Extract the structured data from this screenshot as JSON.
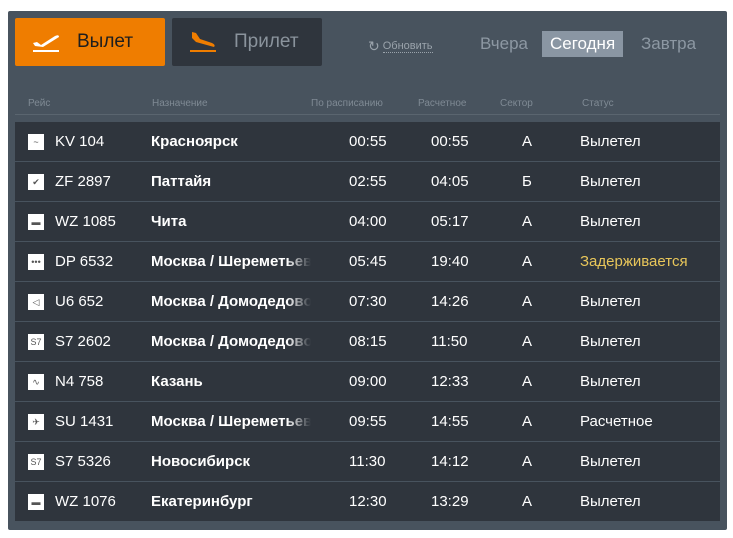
{
  "tabs": {
    "departure": "Вылет",
    "arrival": "Прилет"
  },
  "refresh": "Обновить",
  "days": [
    "Вчера",
    "Сегодня",
    "Завтра"
  ],
  "active_day": "Сегодня",
  "columns": [
    "Рейс",
    "Назначение",
    "По расписанию",
    "Расчетное",
    "Сектор",
    "Статус"
  ],
  "colors": {
    "accent": "#ef7d00",
    "delayed": "#e8c65a"
  },
  "flights": [
    {
      "flight": "KV 104",
      "dest": "Красноярск",
      "sched": "00:55",
      "est": "00:55",
      "sector": "А",
      "status": "Вылетел",
      "logo": "~"
    },
    {
      "flight": "ZF 2897",
      "dest": "Паттайя",
      "sched": "02:55",
      "est": "04:05",
      "sector": "Б",
      "status": "Вылетел",
      "logo": "✔"
    },
    {
      "flight": "WZ 1085",
      "dest": "Чита",
      "sched": "04:00",
      "est": "05:17",
      "sector": "А",
      "status": "Вылетел",
      "logo": "▬"
    },
    {
      "flight": "DP 6532",
      "dest": "Москва / Шереметьево",
      "sched": "05:45",
      "est": "19:40",
      "sector": "А",
      "status": "Задерживается",
      "logo": "•••"
    },
    {
      "flight": "U6 652",
      "dest": "Москва / Домодедово",
      "sched": "07:30",
      "est": "14:26",
      "sector": "А",
      "status": "Вылетел",
      "logo": "◁"
    },
    {
      "flight": "S7 2602",
      "dest": "Москва / Домодедово",
      "sched": "08:15",
      "est": "11:50",
      "sector": "А",
      "status": "Вылетел",
      "logo": "S7"
    },
    {
      "flight": "N4 758",
      "dest": "Казань",
      "sched": "09:00",
      "est": "12:33",
      "sector": "А",
      "status": "Вылетел",
      "logo": "∿"
    },
    {
      "flight": "SU 1431",
      "dest": "Москва / Шереметьево",
      "sched": "09:55",
      "est": "14:55",
      "sector": "А",
      "status": "Расчетное",
      "logo": "✈"
    },
    {
      "flight": "S7 5326",
      "dest": "Новосибирск",
      "sched": "11:30",
      "est": "14:12",
      "sector": "А",
      "status": "Вылетел",
      "logo": "S7"
    },
    {
      "flight": "WZ 1076",
      "dest": "Екатеринбург",
      "sched": "12:30",
      "est": "13:29",
      "sector": "А",
      "status": "Вылетел",
      "logo": "▬"
    }
  ]
}
